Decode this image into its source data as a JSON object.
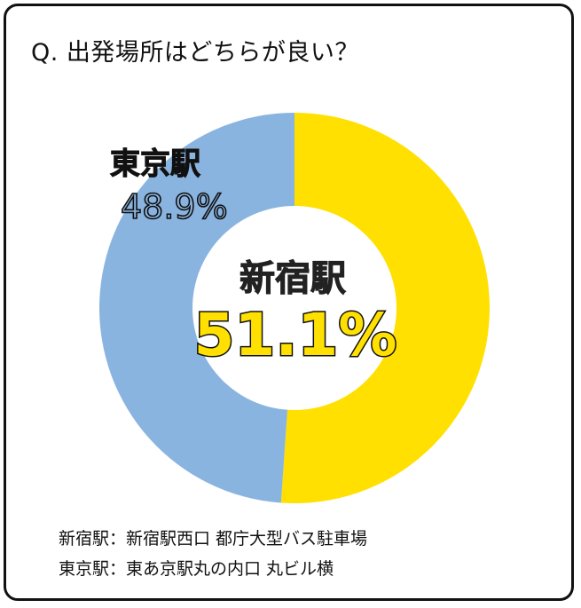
{
  "question": "Q. 出発場所はどちらが良い？",
  "chart_data": {
    "type": "pie",
    "title": "",
    "series": [
      {
        "name": "新宿駅",
        "value": 51.1,
        "label": "51.1%",
        "color": "#FFE000"
      },
      {
        "name": "東京駅",
        "value": 48.9,
        "label": "48.9%",
        "color": "#8AB4E0"
      }
    ]
  },
  "notes": {
    "line1": "新宿駅：新宿駅西口 都庁大型バス駐車場",
    "line2": "東京駅：東あ京駅丸の内口 丸ビル横"
  }
}
